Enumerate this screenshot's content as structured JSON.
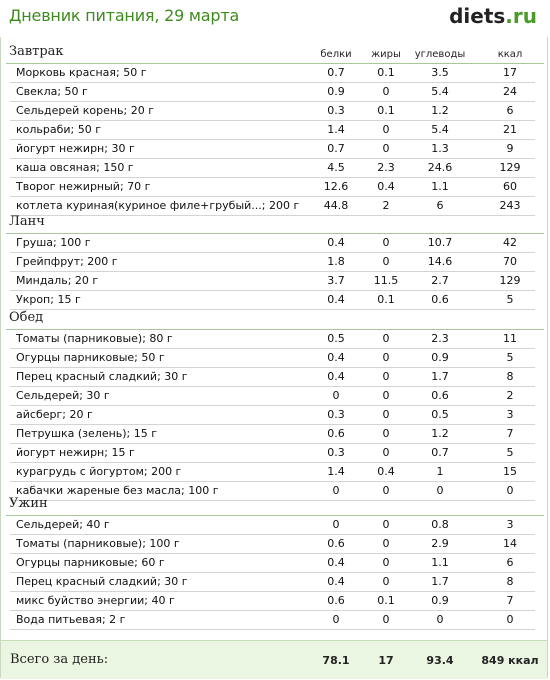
{
  "header": {
    "title": "Дневник питания, 29 марта",
    "logo_main": "diets",
    "logo_suffix": ".ru"
  },
  "columns": [
    "белки",
    "жиры",
    "углеводы",
    "ккал"
  ],
  "meals": [
    {
      "title": "Завтрак",
      "items": [
        [
          "Морковь красная; 50 г",
          "0.7",
          "0.1",
          "3.5",
          "17"
        ],
        [
          "Свекла; 50 г",
          "0.9",
          "0",
          "5.4",
          "24"
        ],
        [
          "Сельдерей корень; 20 г",
          "0.3",
          "0.1",
          "1.2",
          "6"
        ],
        [
          "кольраби; 50 г",
          "1.4",
          "0",
          "5.4",
          "21"
        ],
        [
          "йогурт нежирн; 30 г",
          "0.7",
          "0",
          "1.3",
          "9"
        ],
        [
          "каша овсяная; 150 г",
          "4.5",
          "2.3",
          "24.6",
          "129"
        ],
        [
          "Творог нежирный; 70 г",
          "12.6",
          "0.4",
          "1.1",
          "60"
        ],
        [
          "котлета куриная(куриное филе+грубый...; 200 г",
          "44.8",
          "2",
          "6",
          "243"
        ]
      ]
    },
    {
      "title": "Ланч",
      "items": [
        [
          "Груша; 100 г",
          "0.4",
          "0",
          "10.7",
          "42"
        ],
        [
          "Грейпфрут; 200 г",
          "1.8",
          "0",
          "14.6",
          "70"
        ],
        [
          "Миндаль; 20 г",
          "3.7",
          "11.5",
          "2.7",
          "129"
        ],
        [
          "Укроп; 15 г",
          "0.4",
          "0.1",
          "0.6",
          "5"
        ]
      ]
    },
    {
      "title": "Обед",
      "items": [
        [
          "Томаты (парниковые); 80 г",
          "0.5",
          "0",
          "2.3",
          "11"
        ],
        [
          "Огурцы парниковые; 50 г",
          "0.4",
          "0",
          "0.9",
          "5"
        ],
        [
          "Перец красный сладкий; 30 г",
          "0.4",
          "0",
          "1.7",
          "8"
        ],
        [
          "Сельдерей; 30 г",
          "0",
          "0",
          "0.6",
          "2"
        ],
        [
          "айсберг; 20 г",
          "0.3",
          "0",
          "0.5",
          "3"
        ],
        [
          "Петрушка (зелень); 15 г",
          "0.6",
          "0",
          "1.2",
          "7"
        ],
        [
          "йогурт нежирн; 15 г",
          "0.3",
          "0",
          "0.7",
          "5"
        ],
        [
          "курагрудь с йогуртом; 200 г",
          "1.4",
          "0.4",
          "1",
          "15"
        ],
        [
          "кабачки жареные без масла; 100 г",
          "0",
          "0",
          "0",
          "0"
        ]
      ]
    },
    {
      "title": "Ужин",
      "items": [
        [
          "Сельдерей; 40 г",
          "0",
          "0",
          "0.8",
          "3"
        ],
        [
          "Томаты (парниковые); 100 г",
          "0.6",
          "0",
          "2.9",
          "14"
        ],
        [
          "Огурцы парниковые; 60 г",
          "0.4",
          "0",
          "1.1",
          "6"
        ],
        [
          "Перец красный сладкий; 30 г",
          "0.4",
          "0",
          "1.7",
          "8"
        ],
        [
          "микс буйство энергии; 40 г",
          "0.6",
          "0.1",
          "0.9",
          "7"
        ],
        [
          "Вода питьевая; 2 г",
          "0",
          "0",
          "0",
          "0"
        ]
      ]
    }
  ],
  "total": {
    "label": "Всего за день:",
    "protein": "78.1",
    "fat": "17",
    "carbs": "93.4",
    "kcal": "849 ккал"
  }
}
